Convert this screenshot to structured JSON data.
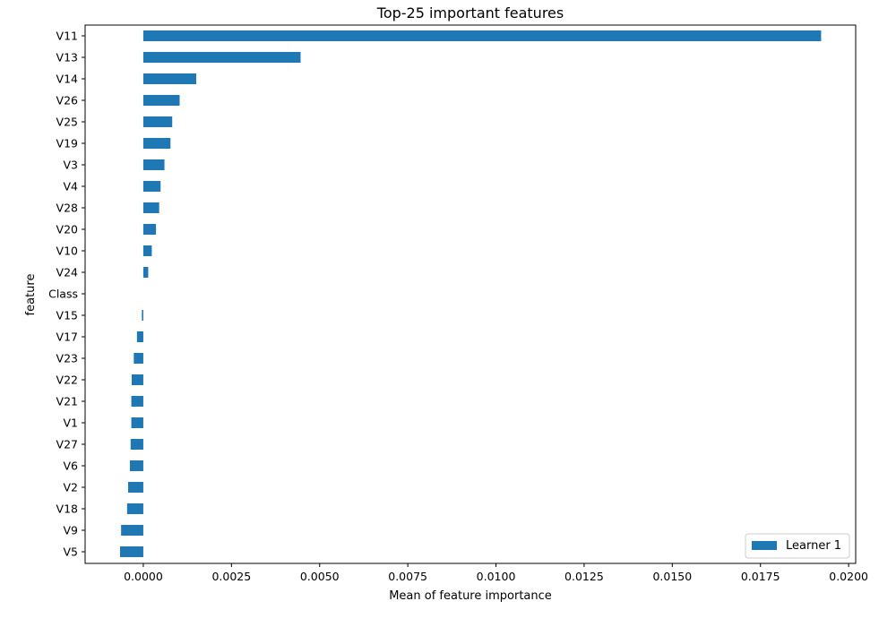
{
  "chart_data": {
    "type": "bar",
    "orientation": "horizontal",
    "title": "Top-25 important features",
    "xlabel": "Mean of feature importance",
    "ylabel": "feature",
    "xlim": [
      -0.00165,
      0.0202
    ],
    "xticks": [
      0.0,
      0.0025,
      0.005,
      0.0075,
      0.01,
      0.0125,
      0.015,
      0.0175,
      0.02
    ],
    "xtick_labels": [
      "0.0000",
      "0.0025",
      "0.0050",
      "0.0075",
      "0.0100",
      "0.0125",
      "0.0150",
      "0.0175",
      "0.0200"
    ],
    "grid": false,
    "legend_position": "bottom-right",
    "categories": [
      "V11",
      "V13",
      "V14",
      "V26",
      "V25",
      "V19",
      "V3",
      "V4",
      "V28",
      "V20",
      "V10",
      "V24",
      "Class",
      "V15",
      "V17",
      "V23",
      "V22",
      "V21",
      "V1",
      "V27",
      "V6",
      "V2",
      "V18",
      "V9",
      "V5"
    ],
    "series": [
      {
        "name": "Learner 1",
        "color": "#1f77b4",
        "values": [
          0.01922,
          0.00446,
          0.0015,
          0.00103,
          0.00082,
          0.00077,
          0.0006,
          0.00049,
          0.00045,
          0.00036,
          0.00024,
          0.00014,
          0.0,
          -4e-05,
          -0.00018,
          -0.00027,
          -0.00033,
          -0.00034,
          -0.00034,
          -0.00036,
          -0.00038,
          -0.00043,
          -0.00046,
          -0.00063,
          -0.00066
        ]
      }
    ]
  }
}
